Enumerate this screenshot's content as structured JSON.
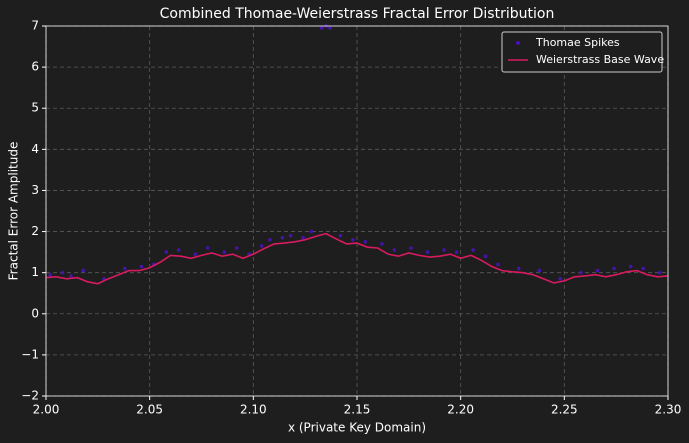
{
  "chart_data": {
    "type": "line",
    "title": "Combined Thomae-Weierstrass Fractal Error Distribution",
    "x_label": "x (Private Key Domain)",
    "y_label": "Fractal Error Amplitude",
    "xlim": [
      2.0,
      2.3
    ],
    "ylim": [
      -2,
      7
    ],
    "xticks": [
      {
        "value": 2.0,
        "label": "2.00"
      },
      {
        "value": 2.05,
        "label": "2.05"
      },
      {
        "value": 2.1,
        "label": "2.10"
      },
      {
        "value": 2.15,
        "label": "2.15"
      },
      {
        "value": 2.2,
        "label": "2.20"
      },
      {
        "value": 2.25,
        "label": "2.25"
      },
      {
        "value": 2.3,
        "label": "2.30"
      }
    ],
    "yticks": [
      {
        "value": -2,
        "label": "−2"
      },
      {
        "value": -1,
        "label": "−1"
      },
      0,
      1,
      2,
      3,
      4,
      5,
      6,
      7
    ],
    "grid": true,
    "legend": "upper right",
    "series": [
      {
        "name": "Thomae Spikes",
        "type": "scatter",
        "color": "#4a12b8",
        "x": [
          2.002,
          2.008,
          2.012,
          2.018,
          2.028,
          2.038,
          2.046,
          2.052,
          2.058,
          2.064,
          2.072,
          2.078,
          2.086,
          2.092,
          2.098,
          2.104,
          2.108,
          2.114,
          2.118,
          2.124,
          2.128,
          2.133,
          2.135,
          2.137,
          2.142,
          2.148,
          2.154,
          2.162,
          2.168,
          2.176,
          2.184,
          2.192,
          2.198,
          2.206,
          2.212,
          2.218,
          2.228,
          2.238,
          2.248,
          2.258,
          2.266,
          2.274,
          2.282,
          2.288,
          2.296
        ],
        "values": [
          0.95,
          1.0,
          0.92,
          1.05,
          0.85,
          1.1,
          1.15,
          1.2,
          1.5,
          1.55,
          1.45,
          1.6,
          1.5,
          1.6,
          1.45,
          1.65,
          1.8,
          1.85,
          1.9,
          1.85,
          2.0,
          6.95,
          7.0,
          6.95,
          1.9,
          1.8,
          1.75,
          1.7,
          1.55,
          1.6,
          1.5,
          1.55,
          1.5,
          1.55,
          1.4,
          1.2,
          1.1,
          1.05,
          0.85,
          1.0,
          1.05,
          1.1,
          1.15,
          1.1,
          1.0
        ]
      },
      {
        "name": "Weierstrass Base Wave",
        "type": "line",
        "color": "#d81b60",
        "x": [
          2.0,
          2.005,
          2.01,
          2.015,
          2.02,
          2.025,
          2.03,
          2.035,
          2.04,
          2.045,
          2.05,
          2.055,
          2.06,
          2.065,
          2.07,
          2.075,
          2.08,
          2.085,
          2.09,
          2.095,
          2.1,
          2.105,
          2.11,
          2.115,
          2.12,
          2.125,
          2.13,
          2.135,
          2.14,
          2.145,
          2.15,
          2.155,
          2.16,
          2.165,
          2.17,
          2.175,
          2.18,
          2.185,
          2.19,
          2.195,
          2.2,
          2.205,
          2.21,
          2.215,
          2.22,
          2.225,
          2.23,
          2.235,
          2.24,
          2.245,
          2.25,
          2.255,
          2.26,
          2.265,
          2.27,
          2.275,
          2.28,
          2.285,
          2.29,
          2.295,
          2.3
        ],
        "values": [
          0.88,
          0.9,
          0.85,
          0.88,
          0.78,
          0.73,
          0.85,
          0.95,
          1.05,
          1.05,
          1.12,
          1.25,
          1.42,
          1.4,
          1.35,
          1.42,
          1.48,
          1.4,
          1.45,
          1.35,
          1.45,
          1.58,
          1.7,
          1.72,
          1.75,
          1.8,
          1.88,
          1.95,
          1.82,
          1.7,
          1.72,
          1.62,
          1.6,
          1.45,
          1.4,
          1.48,
          1.42,
          1.38,
          1.4,
          1.45,
          1.35,
          1.42,
          1.3,
          1.15,
          1.05,
          1.02,
          1.0,
          0.95,
          0.85,
          0.75,
          0.8,
          0.9,
          0.92,
          0.95,
          0.9,
          0.95,
          1.02,
          1.05,
          0.95,
          0.9,
          0.92
        ]
      }
    ]
  }
}
